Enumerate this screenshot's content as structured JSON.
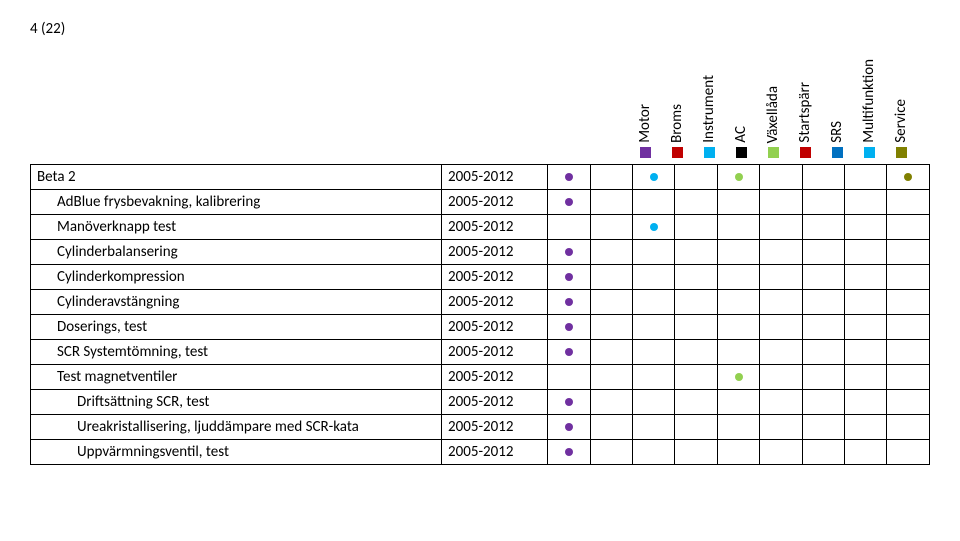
{
  "page_indicator": "4 (22)",
  "colors": {
    "motor": "#7030a0",
    "broms": "#c00000",
    "instrument": "#00b0f0",
    "ac": "#000000",
    "vaxellada": "#92d050",
    "startsparr": "#c00000",
    "srs": "#0070c0",
    "multifunktion": "#00b0f0",
    "service": "#808000"
  },
  "legend": [
    {
      "label": "Motor",
      "key": "motor"
    },
    {
      "label": "Broms",
      "key": "broms"
    },
    {
      "label": "Instrument",
      "key": "instrument"
    },
    {
      "label": "AC",
      "key": "ac"
    },
    {
      "label": "Växellåda",
      "key": "vaxellada"
    },
    {
      "label": "Startspärr",
      "key": "startsparr"
    },
    {
      "label": "SRS",
      "key": "srs"
    },
    {
      "label": "Multifunktion",
      "key": "multifunktion"
    },
    {
      "label": "Service",
      "key": "service"
    }
  ],
  "table": {
    "columns_after_year": 9,
    "rows": [
      {
        "name": "Beta 2",
        "years": "2005-2012",
        "indent": 0,
        "dots": [
          "motor",
          null,
          "instrument",
          null,
          "vaxellada",
          null,
          null,
          null,
          "service"
        ]
      },
      {
        "name": "AdBlue frysbevakning, kalibrering",
        "years": "2005-2012",
        "indent": 1,
        "dots": [
          "motor",
          null,
          null,
          null,
          null,
          null,
          null,
          null,
          null
        ]
      },
      {
        "name": "Manöverknapp test",
        "years": "2005-2012",
        "indent": 1,
        "dots": [
          null,
          null,
          "instrument",
          null,
          null,
          null,
          null,
          null,
          null
        ]
      },
      {
        "name": "Cylinderbalansering",
        "years": "2005-2012",
        "indent": 1,
        "dots": [
          "motor",
          null,
          null,
          null,
          null,
          null,
          null,
          null,
          null
        ]
      },
      {
        "name": "Cylinderkompression",
        "years": "2005-2012",
        "indent": 1,
        "dots": [
          "motor",
          null,
          null,
          null,
          null,
          null,
          null,
          null,
          null
        ]
      },
      {
        "name": "Cylinderavstängning",
        "years": "2005-2012",
        "indent": 1,
        "dots": [
          "motor",
          null,
          null,
          null,
          null,
          null,
          null,
          null,
          null
        ]
      },
      {
        "name": "Doserings, test",
        "years": "2005-2012",
        "indent": 1,
        "dots": [
          "motor",
          null,
          null,
          null,
          null,
          null,
          null,
          null,
          null
        ]
      },
      {
        "name": "SCR Systemtömning, test",
        "years": "2005-2012",
        "indent": 1,
        "dots": [
          "motor",
          null,
          null,
          null,
          null,
          null,
          null,
          null,
          null
        ]
      },
      {
        "name": "Test magnetventiler",
        "years": "2005-2012",
        "indent": 1,
        "dots": [
          null,
          null,
          null,
          null,
          "vaxellada",
          null,
          null,
          null,
          null
        ]
      },
      {
        "name": "Driftsättning SCR, test",
        "years": "2005-2012",
        "indent": 2,
        "dots": [
          "motor",
          null,
          null,
          null,
          null,
          null,
          null,
          null,
          null
        ]
      },
      {
        "name": "Ureakristallisering, ljuddämpare med SCR-kata",
        "years": "2005-2012",
        "indent": 2,
        "dots": [
          "motor",
          null,
          null,
          null,
          null,
          null,
          null,
          null,
          null
        ]
      },
      {
        "name": "Uppvärmningsventil, test",
        "years": "2005-2012",
        "indent": 2,
        "dots": [
          "motor",
          null,
          null,
          null,
          null,
          null,
          null,
          null,
          null
        ]
      }
    ]
  }
}
